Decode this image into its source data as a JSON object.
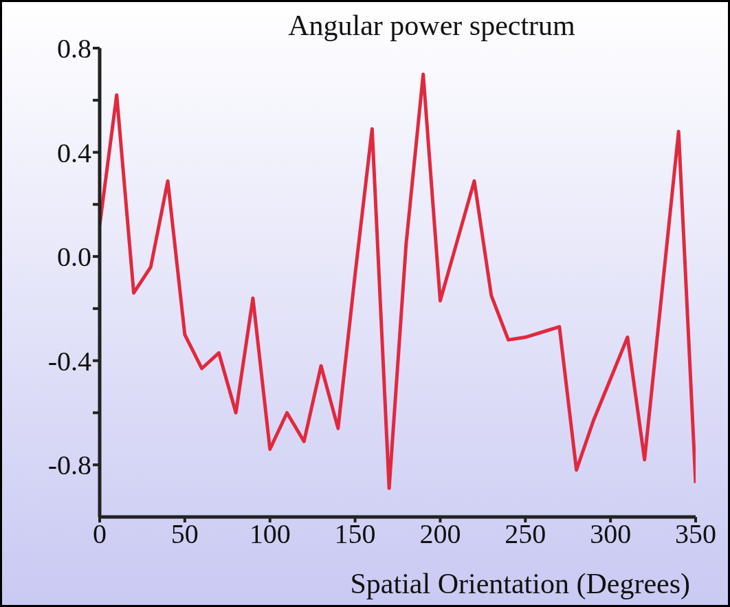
{
  "chart_data": {
    "type": "line",
    "title": "Angular power spectrum",
    "xlabel": "Spatial Orientation (Degrees)",
    "x": [
      0,
      10,
      20,
      30,
      40,
      50,
      60,
      70,
      80,
      90,
      100,
      110,
      120,
      130,
      140,
      150,
      160,
      170,
      180,
      190,
      200,
      210,
      220,
      230,
      240,
      250,
      260,
      270,
      280,
      290,
      300,
      310,
      320,
      330,
      340,
      350
    ],
    "series": [
      {
        "color": "#e0293f",
        "values": [
          0.12,
          0.62,
          -0.14,
          -0.04,
          0.29,
          -0.3,
          -0.43,
          -0.37,
          -0.6,
          -0.16,
          -0.74,
          -0.6,
          -0.71,
          -0.42,
          -0.66,
          -0.07,
          0.49,
          -0.89,
          0.05,
          0.7,
          -0.17,
          0.06,
          0.29,
          -0.15,
          -0.32,
          -0.31,
          -0.29,
          -0.27,
          -0.82,
          -0.63,
          -0.47,
          -0.31,
          -0.78,
          -0.15,
          0.48,
          -0.87
        ]
      }
    ],
    "xlim": [
      0,
      350
    ],
    "xticks": [
      0,
      50,
      100,
      150,
      200,
      250,
      300,
      350
    ],
    "ylim": [
      -1,
      0.8
    ],
    "yticks": [
      {
        "value": -0.8,
        "label": "-0.8"
      },
      {
        "value": -0.6,
        "label": null
      },
      {
        "value": -0.4,
        "label": "-0.4"
      },
      {
        "value": -0.2,
        "label": null
      },
      {
        "value": 0,
        "label": "0.0"
      },
      {
        "value": 0.2,
        "label": null
      },
      {
        "value": 0.4,
        "label": "0.4"
      },
      {
        "value": 0.6,
        "label": null
      },
      {
        "value": 0.8,
        "label": "0.8"
      }
    ],
    "marker": "none",
    "line_style": "solid"
  }
}
